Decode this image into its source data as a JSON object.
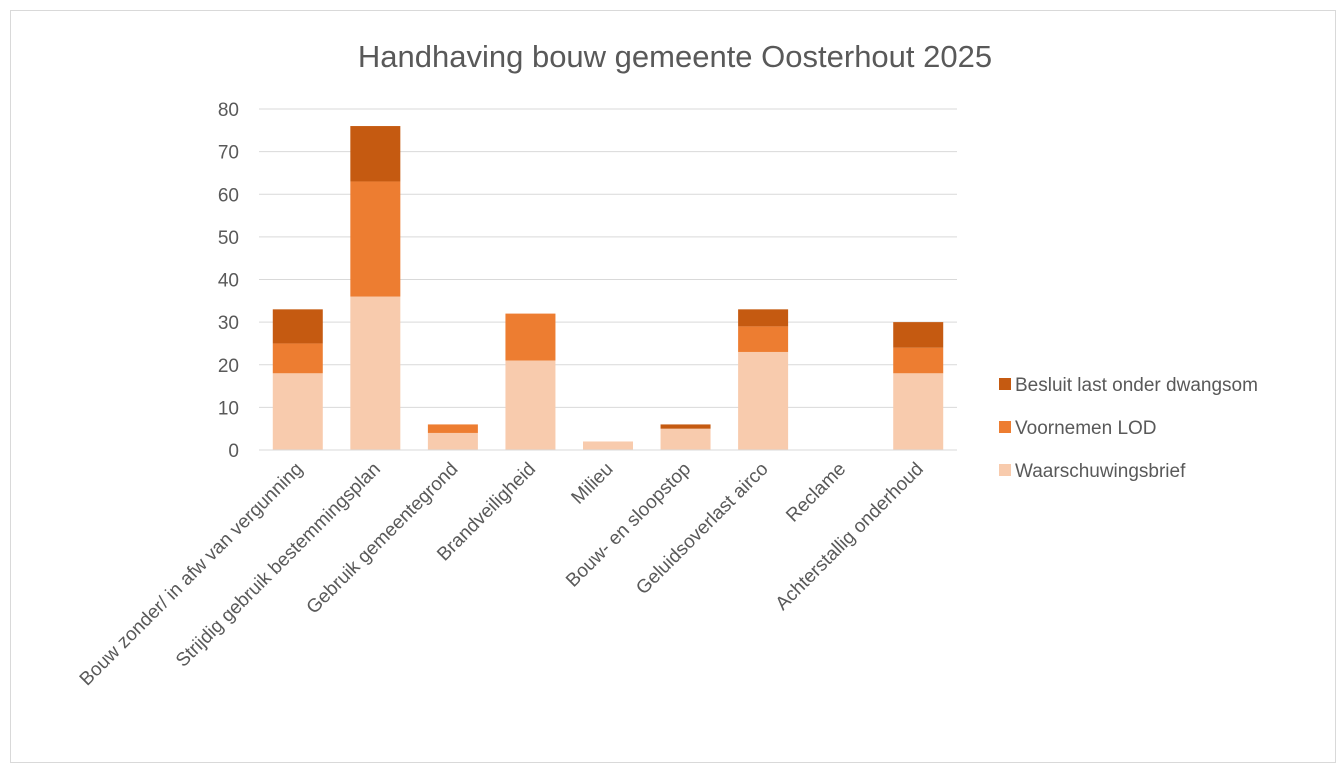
{
  "chart_data": {
    "type": "bar",
    "stacked": true,
    "title": "Handhaving bouw gemeente Oosterhout 2025",
    "xlabel": "",
    "ylabel": "",
    "ylim": [
      0,
      80
    ],
    "yticks": [
      0,
      10,
      20,
      30,
      40,
      50,
      60,
      70,
      80
    ],
    "grid": true,
    "legend_position": "right",
    "categories": [
      "Bouw zonder/ in afw van vergunning",
      "Strijdig gebruik bestemmingsplan",
      "Gebruik gemeentegrond",
      "Brandveiligheid",
      "Milieu",
      "Bouw- en sloopstop",
      "Geluidsoverlast airco",
      "Reclame",
      "Achterstallig onderhoud"
    ],
    "series": [
      {
        "name": "Waarschuwingsbrief",
        "color": "#f8cbad",
        "values": [
          18,
          36,
          4,
          21,
          2,
          5,
          23,
          0,
          18
        ]
      },
      {
        "name": "Voornemen LOD",
        "color": "#ed7d31",
        "values": [
          7,
          27,
          2,
          11,
          0,
          0,
          6,
          0,
          6
        ]
      },
      {
        "name": "Besluit last onder dwangsom",
        "color": "#c55a11",
        "values": [
          8,
          13,
          0,
          0,
          0,
          1,
          4,
          0,
          6
        ]
      }
    ],
    "legend_order": [
      "Besluit last onder dwangsom",
      "Voornemen LOD",
      "Waarschuwingsbrief"
    ]
  }
}
